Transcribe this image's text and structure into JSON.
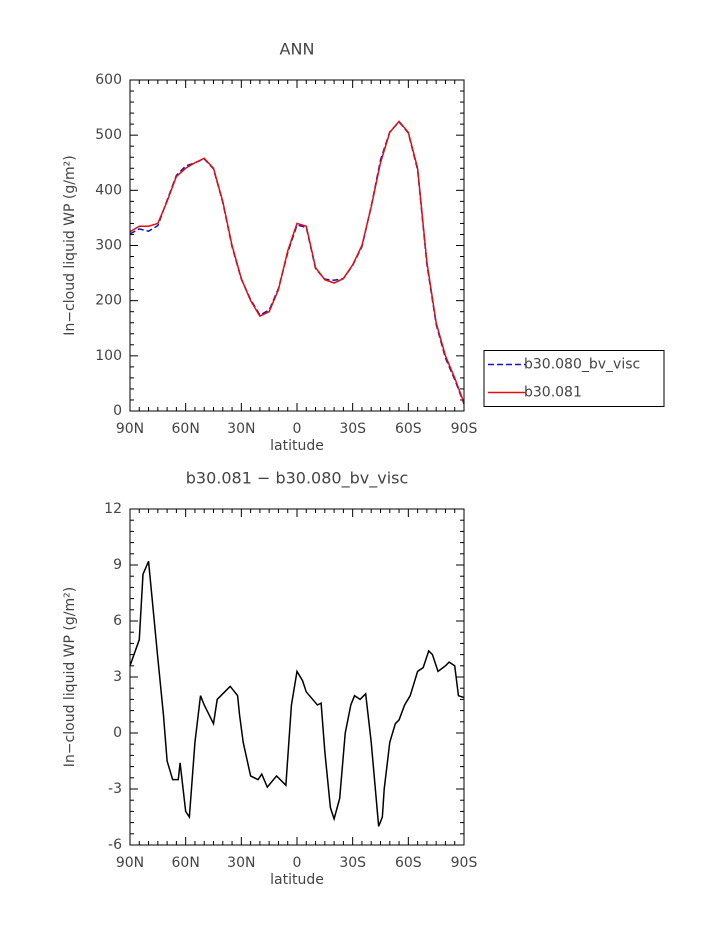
{
  "chart_data": [
    {
      "type": "line",
      "title": "ANN",
      "xlabel": "latitude",
      "ylabel": "In−cloud liquid WP (g/m²)",
      "x": [
        90,
        85,
        80,
        75,
        70,
        65,
        60,
        55,
        50,
        45,
        40,
        35,
        30,
        25,
        20,
        15,
        10,
        5,
        0,
        -5,
        -10,
        -15,
        -20,
        -25,
        -30,
        -35,
        -40,
        -45,
        -50,
        -55,
        -60,
        -65,
        -70,
        -75,
        -80,
        -85,
        -90
      ],
      "series": [
        {
          "name": "b30.080_bv_visc",
          "color": "#1010d0",
          "linestyle": "dashed",
          "values": [
            321,
            330,
            326,
            336,
            382,
            427,
            444,
            450,
            457,
            439,
            378,
            298,
            239,
            202,
            174,
            183,
            222,
            287,
            337,
            333,
            258,
            239,
            237,
            240,
            264,
            298,
            371,
            455,
            506,
            524,
            504,
            437,
            266,
            157,
            96,
            57,
            13
          ]
        },
        {
          "name": "b30.081",
          "color": "#e01010",
          "linestyle": "solid",
          "values": [
            325,
            335,
            335,
            340,
            380,
            425,
            440,
            450,
            458,
            440,
            380,
            300,
            240,
            200,
            172,
            180,
            220,
            290,
            340,
            335,
            260,
            238,
            232,
            240,
            265,
            300,
            370,
            450,
            505,
            525,
            505,
            440,
            270,
            160,
            100,
            60,
            15
          ]
        }
      ],
      "xlim": [
        90,
        -90
      ],
      "xticks": [
        {
          "value": 90,
          "label": "90N"
        },
        {
          "value": 60,
          "label": "60N"
        },
        {
          "value": 30,
          "label": "30N"
        },
        0,
        {
          "value": -30,
          "label": "30S"
        },
        {
          "value": -60,
          "label": "60S"
        },
        {
          "value": -90,
          "label": "90S"
        }
      ],
      "ylim": [
        0,
        600
      ],
      "yticks": [
        0,
        100,
        200,
        300,
        400,
        500,
        600
      ],
      "legend": "right"
    },
    {
      "type": "line",
      "title": "b30.081 − b30.080_bv_visc",
      "xlabel": "latitude",
      "ylabel": "In−cloud liquid WP (g/m²)",
      "x": [
        90,
        85,
        83,
        80,
        75,
        72,
        70,
        67,
        64,
        63,
        60,
        58,
        55,
        52,
        50,
        45,
        43,
        39,
        36,
        32,
        31,
        29,
        25,
        21,
        19,
        16,
        11,
        6,
        3,
        0,
        -3,
        -5,
        -11,
        -13,
        -15,
        -18,
        -20,
        -23,
        -26,
        -29,
        -31,
        -34,
        -37,
        -40,
        -44,
        -46,
        -47,
        -50,
        -53,
        -55,
        -58,
        -61,
        -65,
        -68,
        -71,
        -73,
        -76,
        -80,
        -82,
        -85,
        -87,
        -90
      ],
      "series": [
        {
          "color": "#000000",
          "linestyle": "solid",
          "values": [
            3.6,
            5,
            8.5,
            9.2,
            4,
            1,
            -1.5,
            -2.5,
            -2.5,
            -1.6,
            -4.2,
            -4.5,
            -0.5,
            2,
            1.5,
            0.5,
            1.8,
            2.2,
            2.5,
            2,
            1,
            -0.5,
            -2.3,
            -2.5,
            -2.2,
            -2.9,
            -2.3,
            -2.8,
            1.5,
            3.3,
            2.8,
            2.2,
            1.5,
            1.6,
            -1,
            -4,
            -4.6,
            -3.5,
            0,
            1.5,
            2,
            1.8,
            2.1,
            -0.5,
            -5,
            -4.5,
            -3,
            -0.5,
            0.5,
            0.7,
            1.5,
            2,
            3.3,
            3.5,
            4.4,
            4.2,
            3.3,
            3.6,
            3.8,
            3.6,
            2,
            1.9
          ]
        }
      ],
      "xlim": [
        90,
        -90
      ],
      "xticks": [
        {
          "value": 90,
          "label": "90N"
        },
        {
          "value": 60,
          "label": "60N"
        },
        {
          "value": 30,
          "label": "30N"
        },
        0,
        {
          "value": -30,
          "label": "30S"
        },
        {
          "value": -60,
          "label": "60S"
        },
        {
          "value": -90,
          "label": "90S"
        }
      ],
      "ylim": [
        -6,
        12
      ],
      "yticks": [
        -6,
        -3,
        0,
        3,
        6,
        9,
        12
      ]
    }
  ]
}
